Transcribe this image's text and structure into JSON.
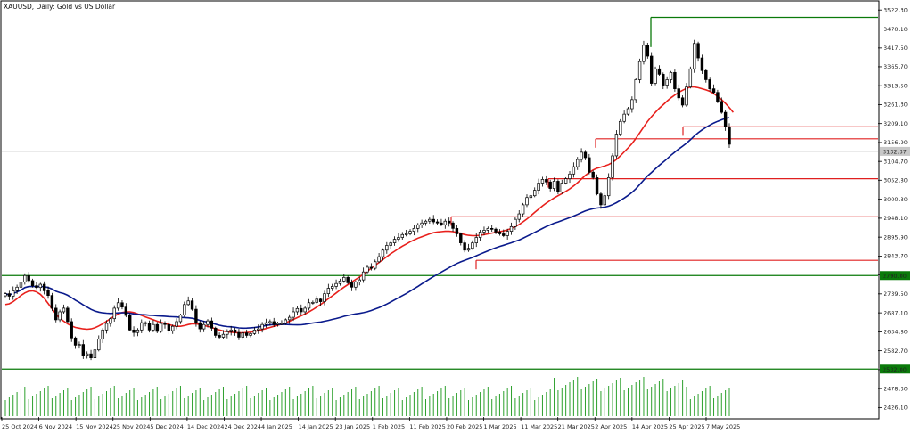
{
  "chart_data": {
    "type": "candlestick",
    "title": "XAUUSD, Daily: Gold vs US Dollar",
    "ylim": [
      2400,
      3540
    ],
    "y_ticks": [
      "3522.30",
      "3470.10",
      "3417.50",
      "3365.70",
      "3313.50",
      "3261.30",
      "3209.10",
      "3156.90",
      "3104.70",
      "3052.80",
      "3000.30",
      "2948.10",
      "2895.90",
      "2843.70",
      "2791.50",
      "2739.50",
      "2687.10",
      "2634.80",
      "2582.70",
      "2530.50",
      "2478.30",
      "2426.10"
    ],
    "x_ticks": [
      "25 Oct 2024",
      "6 Nov 2024",
      "15 Nov 2024",
      "25 Nov 2024",
      "5 Dec 2024",
      "14 Dec 2024",
      "24 Dec 2024",
      "4 Jan 2025",
      "14 Jan 2025",
      "23 Jan 2025",
      "1 Feb 2025",
      "11 Feb 2025",
      "20 Feb 2025",
      "1 Mar 2025",
      "11 Mar 2025",
      "21 Mar 2025",
      "2 Apr 2025",
      "14 Apr 2025",
      "25 Apr 2025",
      "7 May 2025"
    ],
    "current_price_label": "3132.37",
    "level_labels": [
      "2790.00",
      "2532.00"
    ],
    "closes": [
      2740,
      2733,
      2748,
      2758,
      2772,
      2790,
      2776,
      2762,
      2757,
      2766,
      2748,
      2735,
      2700,
      2668,
      2690,
      2700,
      2663,
      2618,
      2598,
      2600,
      2568,
      2574,
      2563,
      2585,
      2615,
      2640,
      2658,
      2671,
      2700,
      2715,
      2703,
      2680,
      2640,
      2633,
      2640,
      2660,
      2658,
      2640,
      2655,
      2636,
      2658,
      2655,
      2638,
      2650,
      2663,
      2681,
      2710,
      2720,
      2697,
      2660,
      2643,
      2655,
      2665,
      2645,
      2625,
      2620,
      2628,
      2635,
      2640,
      2633,
      2620,
      2632,
      2625,
      2630,
      2640,
      2643,
      2655,
      2660,
      2663,
      2655,
      2658,
      2658,
      2668,
      2675,
      2690,
      2699,
      2690,
      2700,
      2715,
      2716,
      2725,
      2718,
      2740,
      2755,
      2760,
      2768,
      2775,
      2785,
      2770,
      2758,
      2772,
      2778,
      2800,
      2813,
      2810,
      2828,
      2842,
      2860,
      2873,
      2880,
      2890,
      2895,
      2903,
      2905,
      2912,
      2920,
      2930,
      2935,
      2940,
      2945,
      2938,
      2935,
      2930,
      2940,
      2935,
      2920,
      2905,
      2880,
      2860,
      2865,
      2880,
      2895,
      2910,
      2915,
      2920,
      2918,
      2910,
      2905,
      2900,
      2912,
      2925,
      2945,
      2960,
      2985,
      3005,
      3010,
      3025,
      3045,
      3055,
      3048,
      3030,
      3050,
      3020,
      3045,
      3057,
      3070,
      3090,
      3110,
      3130,
      3115,
      3075,
      3060,
      3015,
      2985,
      3010,
      3060,
      3120,
      3180,
      3215,
      3235,
      3250,
      3275,
      3330,
      3380,
      3425,
      3395,
      3320,
      3360,
      3345,
      3315,
      3330,
      3350,
      3305,
      3280,
      3260,
      3310,
      3360,
      3430,
      3390,
      3355,
      3330,
      3305,
      3295,
      3270,
      3240,
      3200,
      3152
    ],
    "sma_fast": [
      2710,
      2712,
      2718,
      2726,
      2735,
      2742,
      2747,
      2748,
      2745,
      2738,
      2727,
      2713,
      2698,
      2684,
      2672,
      2664,
      2657,
      2651,
      2647,
      2645,
      2643,
      2642,
      2643,
      2646,
      2651,
      2657,
      2664,
      2671,
      2678,
      2684,
      2688,
      2690,
      2690,
      2688,
      2684,
      2680,
      2676,
      2672,
      2668,
      2664,
      2661,
      2658,
      2655,
      2652,
      2650,
      2650,
      2652,
      2655,
      2657,
      2657,
      2655,
      2652,
      2650,
      2647,
      2643,
      2640,
      2637,
      2635,
      2634,
      2633,
      2632,
      2632,
      2633,
      2634,
      2636,
      2638,
      2641,
      2644,
      2647,
      2650,
      2653,
      2656,
      2660,
      2664,
      2669,
      2674,
      2679,
      2684,
      2690,
      2696,
      2703,
      2710,
      2718,
      2726,
      2734,
      2742,
      2750,
      2758,
      2765,
      2772,
      2779,
      2786,
      2794,
      2802,
      2810,
      2818,
      2826,
      2834,
      2842,
      2850,
      2857,
      2864,
      2871,
      2877,
      2883,
      2888,
      2893,
      2897,
      2901,
      2905,
      2908,
      2910,
      2911,
      2912,
      2912,
      2911,
      2909,
      2906,
      2903,
      2901,
      2900,
      2900,
      2901,
      2903,
      2905,
      2907,
      2909,
      2911,
      2913,
      2916,
      2920,
      2925,
      2931,
      2938,
      2946,
      2955,
      2964,
      2973,
      2982,
      2990,
      2997,
      3004,
      3010,
      3016,
      3022,
      3029,
      3037,
      3046,
      3056,
      3066,
      3074,
      3081,
      3086,
      3089,
      3092,
      3096,
      3102,
      3110,
      3120,
      3131,
      3142,
      3154,
      3168,
      3184,
      3200,
      3215,
      3228,
      3240,
      3251,
      3261,
      3271,
      3280,
      3288,
      3295,
      3301,
      3306,
      3310,
      3310,
      3308,
      3305,
      3302,
      3298,
      3292,
      3284,
      3275,
      3265,
      3253,
      3240
    ]
  }
}
